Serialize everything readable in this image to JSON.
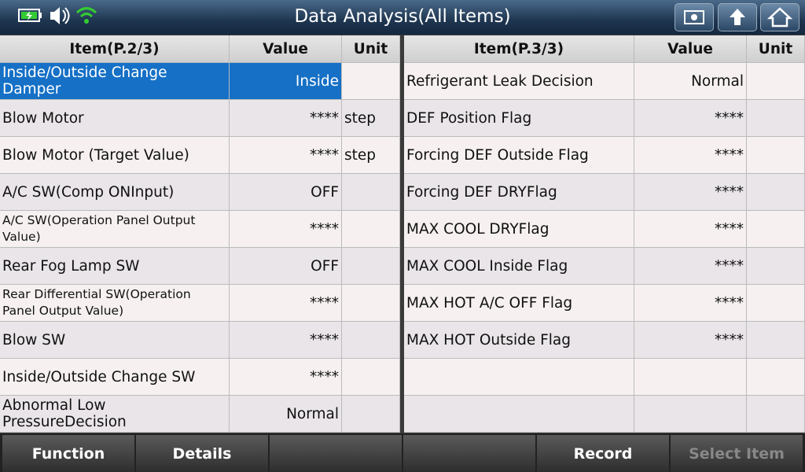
{
  "header": {
    "title": "Data Analysis(All Items)"
  },
  "left_table": {
    "columns": [
      "Item(P.2/3)",
      "Value",
      "Unit"
    ],
    "rows": [
      {
        "item": "Inside/Outside Change Damper",
        "value": "Inside"
      },
      {
        "item": "Blow Motor",
        "value": "****",
        "unit": "step"
      },
      {
        "item": "Blow Motor (Target Value)",
        "value": "****",
        "unit": "step"
      },
      {
        "item": "A/C SW(Comp ONInput)",
        "value": "OFF"
      },
      {
        "item": "A/C SW(Operation Panel Output Value)",
        "value": "****"
      },
      {
        "item": "Rear Fog Lamp SW",
        "value": "OFF"
      },
      {
        "item": "Rear Differential SW(Operation Panel Output Value)",
        "value": "****"
      },
      {
        "item": "Blow SW",
        "value": "****"
      },
      {
        "item": "Inside/Outside Change SW",
        "value": "****"
      },
      {
        "item": "Abnormal Low PressureDecision",
        "value": "Normal"
      }
    ]
  },
  "right_table": {
    "columns": [
      "Item(P.3/3)",
      "Value",
      "Unit"
    ],
    "rows": [
      {
        "item": "Refrigerant Leak Decision",
        "value": "Normal"
      },
      {
        "item": "DEF Position Flag",
        "value": "****"
      },
      {
        "item": "Forcing DEF Outside Flag",
        "value": "****"
      },
      {
        "item": "Forcing DEF DRYFlag",
        "value": "****"
      },
      {
        "item": "MAX COOL DRYFlag",
        "value": "****"
      },
      {
        "item": "MAX COOL Inside Flag",
        "value": "****"
      },
      {
        "item": "MAX HOT A/C OFF Flag",
        "value": "****"
      },
      {
        "item": "MAX HOT Outside Flag",
        "value": "****"
      }
    ]
  },
  "footer": {
    "buttons": [
      "Function",
      "Details",
      "Record",
      "Select Item"
    ]
  }
}
